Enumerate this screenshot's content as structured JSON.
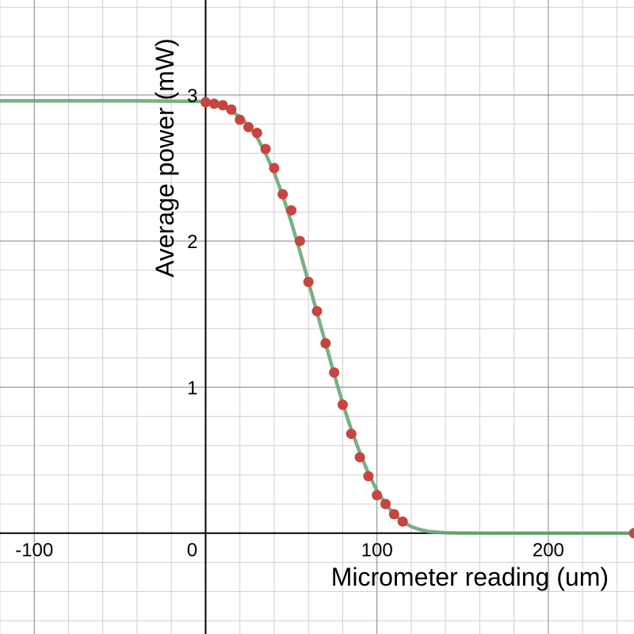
{
  "chart_data": {
    "type": "scatter",
    "title": "",
    "xlabel": "Micrometer reading (um)",
    "ylabel": "Average power (mW)",
    "xlim": [
      -120,
      250
    ],
    "ylim": [
      -0.69,
      3.65
    ],
    "x_ticks": [
      -100,
      0,
      100,
      200
    ],
    "x_tick_labels": [
      "-100",
      "0",
      "100",
      "200"
    ],
    "y_ticks": [
      1,
      2,
      3
    ],
    "y_tick_labels": [
      "1",
      "2",
      "3"
    ],
    "minor_step_x": 20,
    "minor_step_y": 0.2,
    "grid": true,
    "series": [
      {
        "type": "scatter",
        "color": "#c74440",
        "x": [
          0,
          5,
          10,
          15,
          20,
          25,
          30,
          35,
          40,
          45,
          50,
          55,
          60,
          65,
          70,
          75,
          80,
          85,
          90,
          95,
          100,
          105,
          110,
          115,
          250
        ],
        "y": [
          2.95,
          2.94,
          2.93,
          2.9,
          2.83,
          2.78,
          2.74,
          2.63,
          2.5,
          2.32,
          2.21,
          2.0,
          1.72,
          1.52,
          1.3,
          1.1,
          0.88,
          0.68,
          0.52,
          0.39,
          0.26,
          0.2,
          0.13,
          0.08,
          0.0
        ]
      },
      {
        "type": "line",
        "color": "#6aa777",
        "x": [
          -120,
          -80,
          -40,
          0,
          5,
          10,
          15,
          20,
          25,
          30,
          35,
          40,
          45,
          50,
          55,
          60,
          65,
          70,
          75,
          80,
          85,
          90,
          95,
          100,
          105,
          110,
          115,
          120,
          125,
          130,
          140,
          150,
          175,
          200,
          250
        ],
        "y": [
          2.96,
          2.96,
          2.96,
          2.955,
          2.94,
          2.92,
          2.89,
          2.85,
          2.79,
          2.71,
          2.6,
          2.47,
          2.31,
          2.13,
          1.93,
          1.72,
          1.51,
          1.3,
          1.09,
          0.89,
          0.71,
          0.55,
          0.41,
          0.29,
          0.2,
          0.13,
          0.08,
          0.045,
          0.025,
          0.012,
          0.003,
          0.001,
          0.0,
          0.0,
          0.0
        ]
      }
    ]
  }
}
